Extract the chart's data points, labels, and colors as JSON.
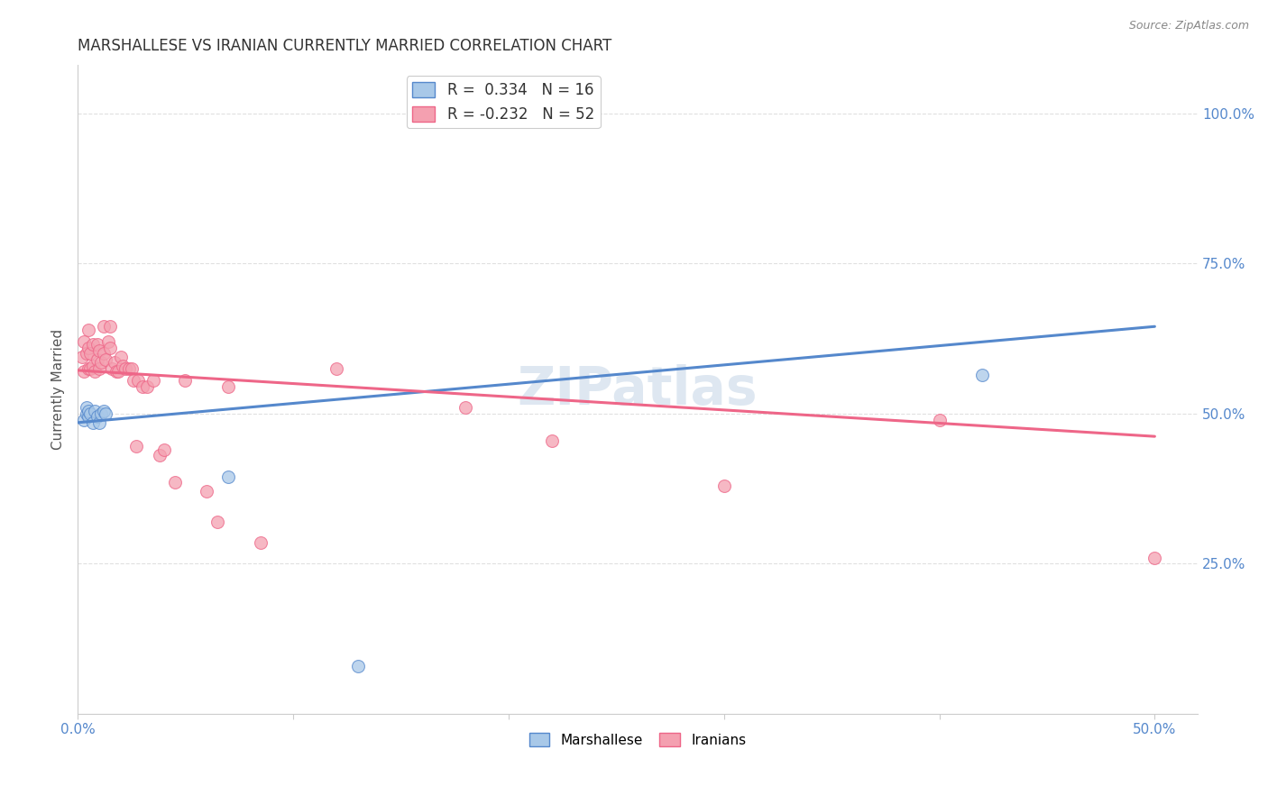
{
  "title": "MARSHALLESE VS IRANIAN CURRENTLY MARRIED CORRELATION CHART",
  "source": "Source: ZipAtlas.com",
  "ylabel": "Currently Married",
  "ytick_labels": [
    "100.0%",
    "75.0%",
    "50.0%",
    "25.0%"
  ],
  "ytick_values": [
    1.0,
    0.75,
    0.5,
    0.25
  ],
  "xtick_positions": [
    0.0,
    0.1,
    0.2,
    0.3,
    0.4,
    0.5
  ],
  "xtick_labels": [
    "0.0%",
    "",
    "",
    "",
    "",
    "50.0%"
  ],
  "xlim": [
    0.0,
    0.52
  ],
  "ylim": [
    0.0,
    1.08
  ],
  "watermark": "ZIPatlas",
  "legend_blue_r": "R =  0.334",
  "legend_blue_n": "N = 16",
  "legend_pink_r": "R = -0.232",
  "legend_pink_n": "N = 52",
  "blue_color": "#A8C8E8",
  "pink_color": "#F4A0B0",
  "blue_line_color": "#5588CC",
  "pink_line_color": "#EE6688",
  "marshallese_x": [
    0.003,
    0.004,
    0.004,
    0.005,
    0.005,
    0.006,
    0.007,
    0.008,
    0.009,
    0.01,
    0.011,
    0.012,
    0.013,
    0.42,
    0.07,
    0.13
  ],
  "marshallese_y": [
    0.49,
    0.5,
    0.51,
    0.495,
    0.505,
    0.5,
    0.485,
    0.505,
    0.495,
    0.485,
    0.5,
    0.505,
    0.5,
    0.565,
    0.395,
    0.08
  ],
  "iranians_x": [
    0.002,
    0.003,
    0.003,
    0.004,
    0.005,
    0.005,
    0.005,
    0.006,
    0.006,
    0.007,
    0.007,
    0.008,
    0.009,
    0.009,
    0.01,
    0.01,
    0.011,
    0.012,
    0.012,
    0.013,
    0.014,
    0.015,
    0.015,
    0.016,
    0.017,
    0.018,
    0.019,
    0.02,
    0.021,
    0.022,
    0.024,
    0.025,
    0.026,
    0.027,
    0.028,
    0.03,
    0.032,
    0.035,
    0.038,
    0.04,
    0.045,
    0.05,
    0.06,
    0.065,
    0.07,
    0.085,
    0.12,
    0.18,
    0.22,
    0.3,
    0.4,
    0.5
  ],
  "iranians_y": [
    0.595,
    0.62,
    0.57,
    0.6,
    0.575,
    0.61,
    0.64,
    0.575,
    0.6,
    0.58,
    0.615,
    0.57,
    0.59,
    0.615,
    0.575,
    0.605,
    0.585,
    0.6,
    0.645,
    0.59,
    0.62,
    0.645,
    0.61,
    0.575,
    0.585,
    0.57,
    0.57,
    0.595,
    0.58,
    0.575,
    0.575,
    0.575,
    0.555,
    0.445,
    0.555,
    0.545,
    0.545,
    0.555,
    0.43,
    0.44,
    0.385,
    0.555,
    0.37,
    0.32,
    0.545,
    0.285,
    0.575,
    0.51,
    0.455,
    0.38,
    0.49,
    0.26
  ],
  "blue_line_x": [
    0.0,
    0.5
  ],
  "blue_line_y": [
    0.485,
    0.645
  ],
  "pink_line_x": [
    0.0,
    0.5
  ],
  "pink_line_y": [
    0.572,
    0.462
  ],
  "background_color": "#FFFFFF",
  "grid_color": "#DDDDDD",
  "tick_color": "#5588CC"
}
